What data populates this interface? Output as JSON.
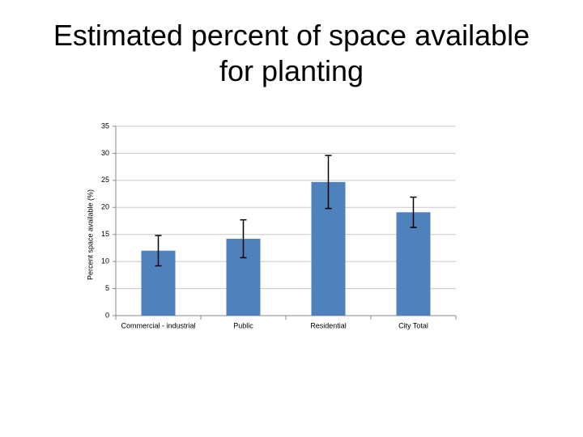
{
  "chart_data": {
    "type": "bar",
    "title": "Estimated percent of space available for planting",
    "y_label": "Percent space available (%)",
    "categories": [
      "Commercial - industrial",
      "Public",
      "Residential",
      "City Total"
    ],
    "values": [
      12,
      14.2,
      24.7,
      19.1
    ],
    "errors": [
      2.8,
      3.5,
      4.9,
      2.8
    ],
    "color": "#4f81bd",
    "ylim": [
      0,
      35
    ],
    "yticks": [
      0,
      5,
      10,
      15,
      20,
      25,
      30,
      35
    ],
    "grid": true
  }
}
